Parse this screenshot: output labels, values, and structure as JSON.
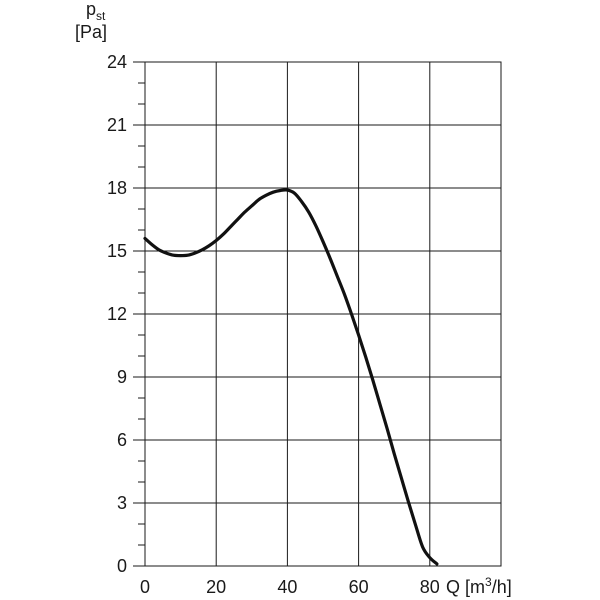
{
  "chart_data": {
    "type": "line",
    "ylabel_symbol": "p",
    "ylabel_subscript": "st",
    "ylabel_unit": "[Pa]",
    "xlabel_prefix": "Q [m",
    "xlabel_superscript": "3",
    "xlabel_suffix": "/h]",
    "xlim": [
      0,
      100
    ],
    "ylim": [
      0,
      24
    ],
    "x_ticks": [
      0,
      20,
      40,
      60,
      80
    ],
    "x_tick_labels": [
      "0",
      "20",
      "40",
      "60",
      "80"
    ],
    "y_ticks": [
      0,
      3,
      6,
      9,
      12,
      15,
      18,
      21,
      24
    ],
    "y_tick_labels": [
      "0",
      "3",
      "6",
      "9",
      "12",
      "15",
      "18",
      "21",
      "24"
    ],
    "grid": true,
    "series": [
      {
        "x": [
          0,
          2,
          4,
          6,
          8,
          10,
          12,
          14,
          16,
          18,
          20,
          22,
          24,
          26,
          28,
          30,
          32,
          34,
          36,
          38,
          40,
          42,
          44,
          46,
          48,
          50,
          52,
          54,
          56,
          58,
          60,
          62,
          64,
          66,
          68,
          70,
          72,
          74,
          76,
          78,
          80,
          82
        ],
        "y": [
          15.6,
          15.3,
          15.05,
          14.9,
          14.8,
          14.78,
          14.8,
          14.9,
          15.05,
          15.25,
          15.5,
          15.8,
          16.15,
          16.5,
          16.85,
          17.15,
          17.45,
          17.65,
          17.8,
          17.88,
          17.9,
          17.75,
          17.35,
          16.85,
          16.2,
          15.45,
          14.65,
          13.8,
          12.95,
          12.0,
          11.0,
          9.95,
          8.85,
          7.7,
          6.55,
          5.35,
          4.2,
          3.05,
          1.95,
          0.9,
          0.4,
          0.1
        ]
      }
    ]
  }
}
